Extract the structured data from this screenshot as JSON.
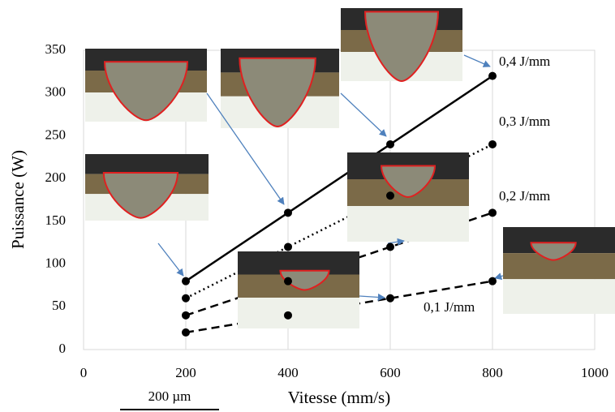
{
  "chart_data": {
    "type": "line",
    "x_label": "Vitesse (mm/s)",
    "y_label": "Puissance (W)",
    "x": [
      200,
      400,
      600,
      800
    ],
    "series": [
      {
        "name": "0,1 J/mm",
        "color": "#000000",
        "dash": "dashed",
        "values": [
          20,
          40,
          60,
          80
        ]
      },
      {
        "name": "0,2 J/mm",
        "color": "#000000",
        "dash": "dashed",
        "values": [
          40,
          80,
          120,
          160
        ]
      },
      {
        "name": "0,3 J/mm",
        "color": "#000000",
        "dash": "dotted",
        "values": [
          60,
          120,
          180,
          240
        ]
      },
      {
        "name": "0,4 J/mm",
        "color": "#000000",
        "dash": "solid",
        "values": [
          80,
          160,
          240,
          320
        ]
      }
    ],
    "xlim": [
      0,
      1000
    ],
    "xticks": [
      0,
      200,
      400,
      600,
      800,
      1000
    ],
    "ylim": [
      0,
      350
    ],
    "yticks": [
      0,
      50,
      100,
      150,
      200,
      250,
      300,
      350
    ],
    "grid": "x",
    "scale_bar": "200 µm"
  }
}
